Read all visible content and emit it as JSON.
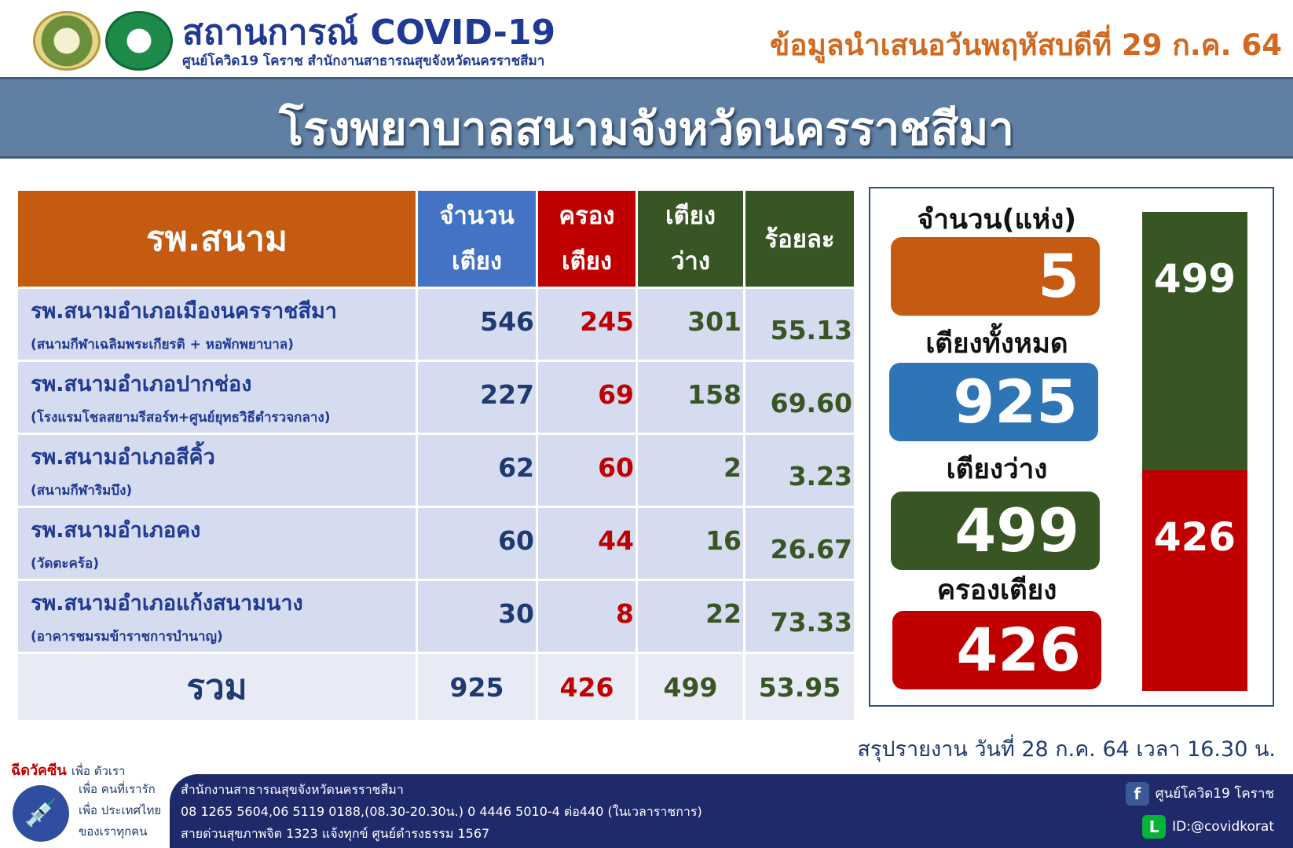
{
  "header": {
    "title": "สถานการณ์ COVID-19",
    "subtitle": "ศูนย์โควิด19 โคราช สำนักงานสาธารณสุขจังหวัดนครราชสีมา",
    "date_title": "ข้อมูลนำเสนอวันพฤหัสบดีที่ 29 ก.ค. 64",
    "banner": "โรงพยาบาลสนามจังหวัดนครราชสีมา"
  },
  "table": {
    "headers": {
      "name": "รพ.สนาม",
      "beds_1": "จำนวน",
      "beds_2": "เตียง",
      "occupied_1": "ครอง",
      "occupied_2": "เตียง",
      "free_1": "เตียง",
      "free_2": "ว่าง",
      "percent": "ร้อยละ"
    },
    "rows": [
      {
        "name": "รพ.สนามอำเภอเมืองนครราชสีมา",
        "sub": "(สนามกีฬาเฉลิมพระเกียรติ + หอพักพยาบาล)",
        "beds": "546",
        "occupied": "245",
        "free": "301",
        "percent": "55.13"
      },
      {
        "name": "รพ.สนามอำเภอปากช่อง",
        "sub": "(โรงแรมโชลสยามรีสอร์ท+ศูนย์ยุทธวิธีตำรวจกลาง)",
        "beds": "227",
        "occupied": "69",
        "free": "158",
        "percent": "69.60"
      },
      {
        "name": "รพ.สนามอำเภอสีคิ้ว",
        "sub": "(สนามกีฬาริมบึง)",
        "beds": "62",
        "occupied": "60",
        "free": "2",
        "percent": "3.23"
      },
      {
        "name": "รพ.สนามอำเภอคง",
        "sub": "(วัดตะคร้อ)",
        "beds": "60",
        "occupied": "44",
        "free": "16",
        "percent": "26.67"
      },
      {
        "name": "รพ.สนามอำเภอแก้งสนามนาง",
        "sub": "(อาคารชมรมข้าราชการบำนาญ)",
        "beds": "30",
        "occupied": "8",
        "free": "22",
        "percent": "73.33"
      }
    ],
    "total": {
      "label": "รวม",
      "beds": "925",
      "occupied": "426",
      "free": "499",
      "percent": "53.95"
    }
  },
  "summary": {
    "count_label": "จำนวน(แห่ง)",
    "count_value": "5",
    "total_label": "เตียงทั้งหมด",
    "total_value": "925",
    "free_label": "เตียงว่าง",
    "free_value": "499",
    "occupied_label": "ครองเตียง",
    "occupied_value": "426",
    "bar": {
      "free": 499,
      "occupied": 426,
      "free_label": "499",
      "occupied_label": "426"
    }
  },
  "report_note": "สรุปรายงาน วันที่ 28 ก.ค. 64 เวลา 16.30 น.",
  "vaccine": {
    "head": "ฉีดวัคซีน",
    "head_suffix": "เพื่อ ตัวเรา",
    "line1": "เพื่อ คนที่เรารัก",
    "line2": "เพื่อ ประเทศไทย",
    "line3": "ของเราทุกคน"
  },
  "footer": {
    "org": "สำนักงานสาธารณสุขจังหวัดนครราชสีมา",
    "phones": "08 1265 5604,06 5119 0188,(08.30-20.30น.) 0 4446 5010-4 ต่อ440 (ในเวลาราชการ)",
    "hotline": "สายด่วนสุขภาพจิต 1323 แจ้งทุกข์ ศูนย์ดำรงธรรม 1567",
    "facebook": "ศูนย์โควิด19 โคราช",
    "line_id": "ID:@covidkorat"
  },
  "colors": {
    "orange": "#c55a11",
    "blue": "#4472c4",
    "red": "#c00000",
    "green": "#375623",
    "banner": "#5f7fa3",
    "footer": "#1f2a6b"
  }
}
